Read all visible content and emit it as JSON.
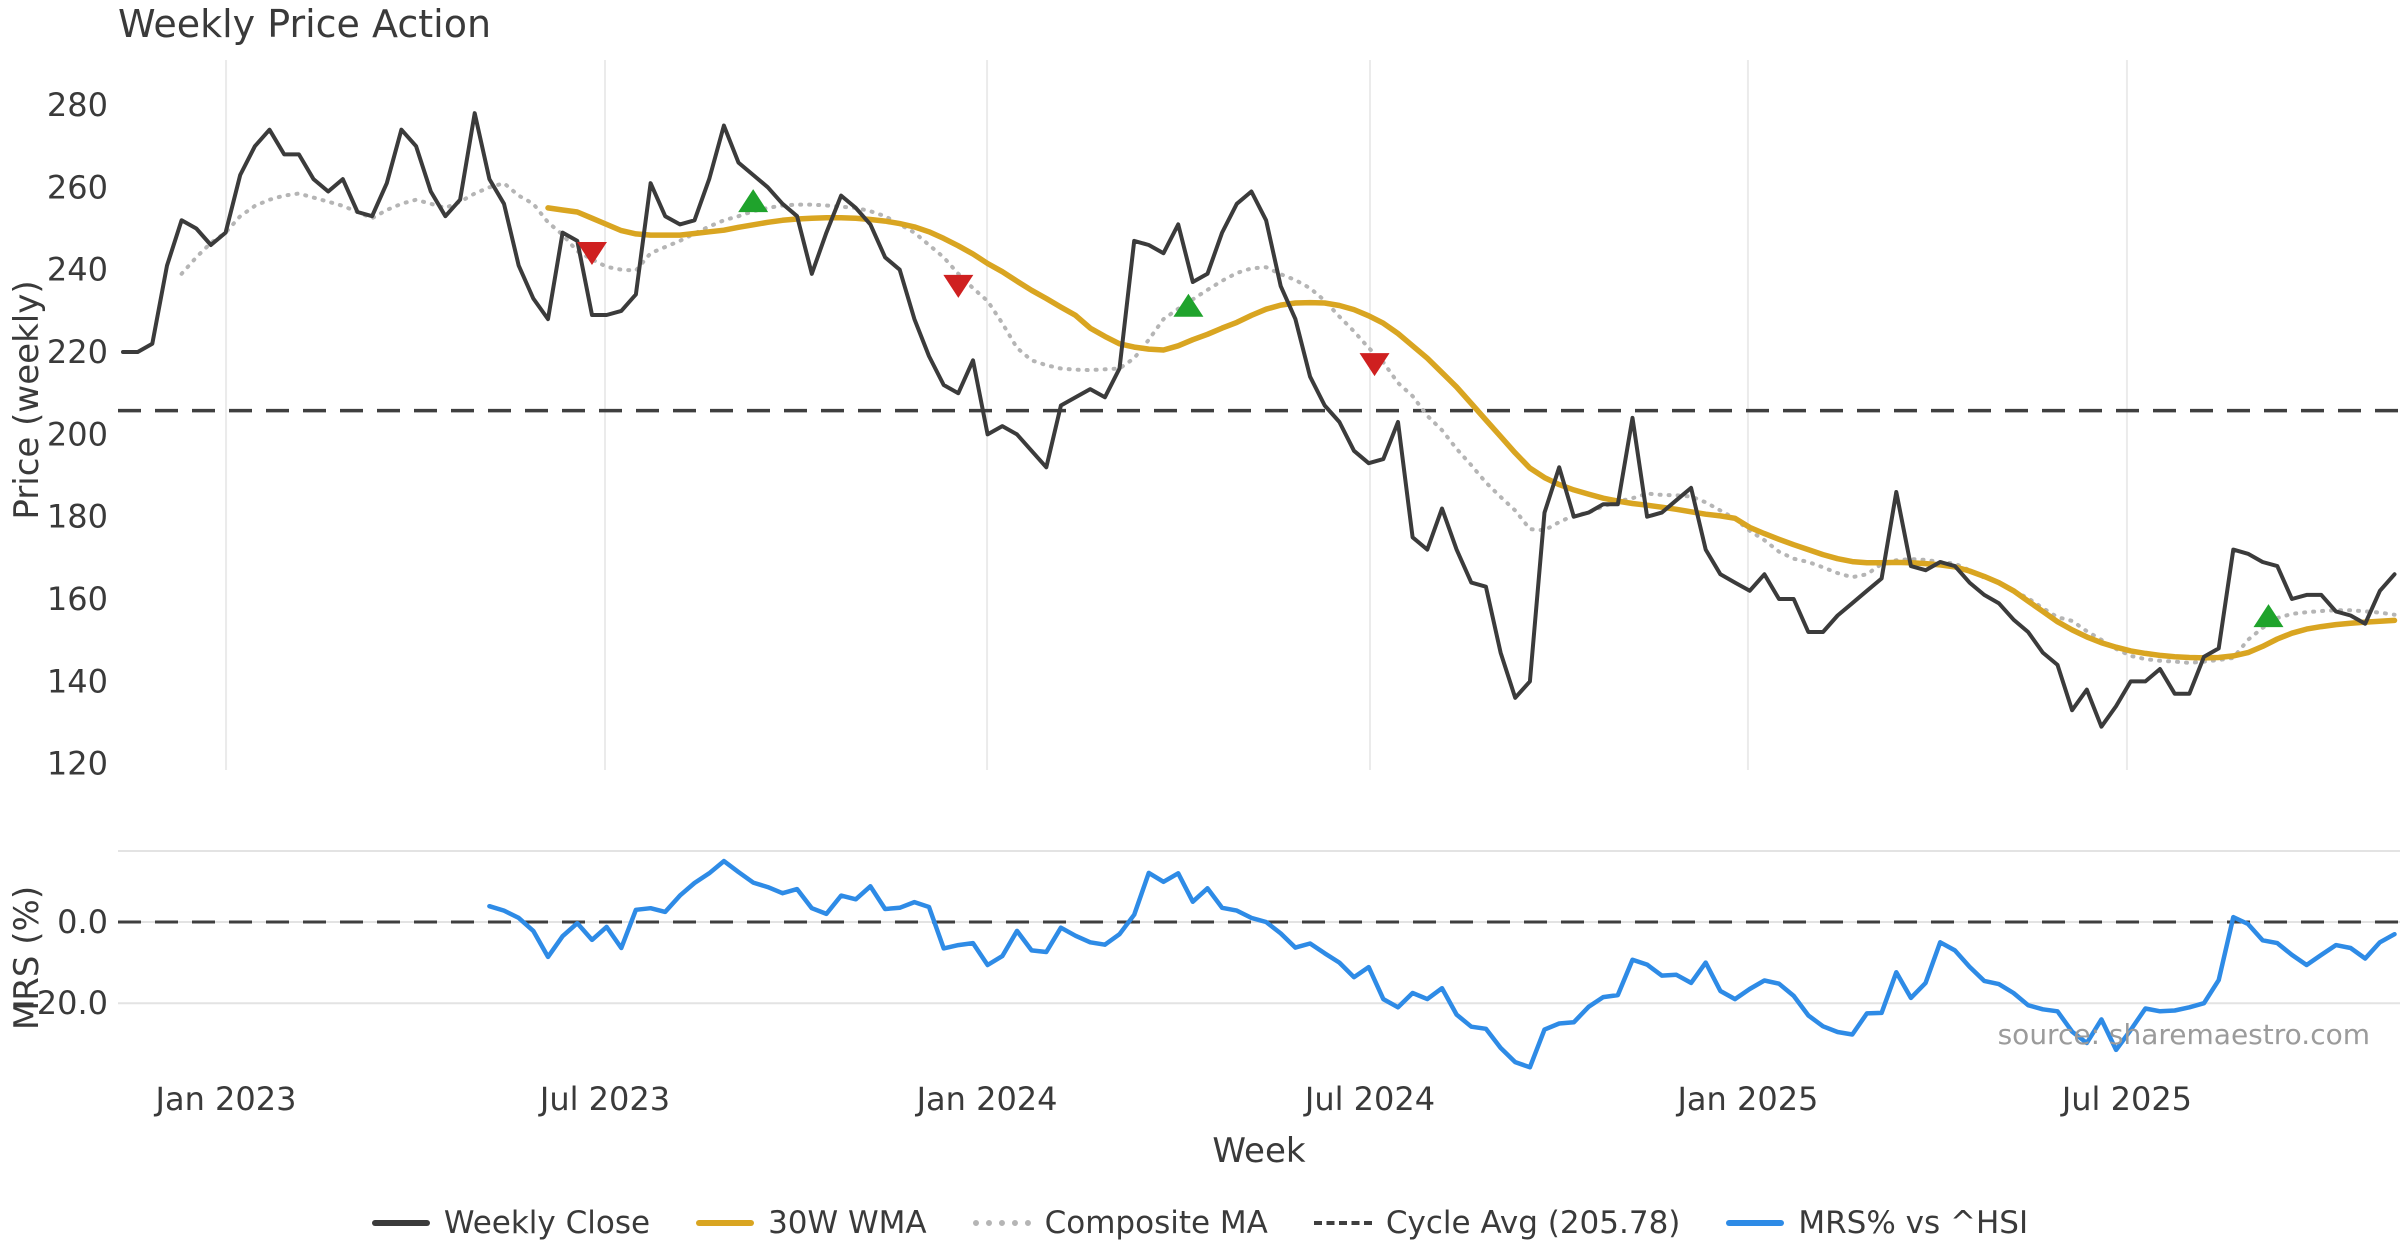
{
  "title": "Weekly Price Action",
  "source": "source: sharemaestro.com",
  "axes": {
    "price_label": "Price (weekly)",
    "mrs_label": "MRS (%)",
    "x_label": "Week",
    "price_ticks": [
      280,
      260,
      240,
      220,
      200,
      180,
      160,
      140,
      120
    ],
    "mrs_ticks": [
      {
        "label": "0.0",
        "value": 0
      },
      {
        "label": "−20.0",
        "value": -20
      }
    ],
    "x_ticks": [
      {
        "label": "Jan 2023",
        "week": 7.03
      },
      {
        "label": "Jul 2023",
        "week": 32.89
      },
      {
        "label": "Jan 2024",
        "week": 58.96
      },
      {
        "label": "Jul 2024",
        "week": 85.09
      },
      {
        "label": "Jan 2025",
        "week": 110.88
      },
      {
        "label": "Jul 2025",
        "week": 136.74
      }
    ]
  },
  "colors": {
    "text": "#3a3a3a",
    "close": "#3b3b3b",
    "wma": "#d9a521",
    "composite": "#b5b5b5",
    "cycle": "#3f3f3f",
    "mrs": "#2e8be6",
    "buy": "#1fa32c",
    "sell": "#cf2020",
    "grid": "#ebebeb",
    "panel_line": "#e3e3e3"
  },
  "legend": [
    {
      "label": "Weekly Close",
      "style": "solid",
      "color": "#3b3b3b"
    },
    {
      "label": "30W WMA",
      "style": "solid",
      "color": "#d9a521"
    },
    {
      "label": "Composite MA",
      "style": "dotted",
      "color": "#b5b5b5"
    },
    {
      "label": "Cycle Avg (205.78)",
      "style": "dashed",
      "color": "#3f3f3f"
    },
    {
      "label": "MRS% vs ^HSI",
      "style": "solid",
      "color": "#2e8be6"
    }
  ],
  "chart_data": {
    "type": "line",
    "x_unit": "week_index",
    "price_axis": {
      "min": 118,
      "max": 292,
      "ticks": [
        280,
        260,
        240,
        220,
        200,
        180,
        160,
        140,
        120
      ]
    },
    "mrs_axis": {
      "ticks": [
        0,
        -20
      ]
    },
    "cycle_avg": 205.78,
    "series": [
      {
        "name": "Weekly Close",
        "panel": "price",
        "start": 0,
        "values": [
          220,
          220,
          222,
          241,
          252,
          250,
          246,
          249,
          263,
          270,
          274,
          268,
          268,
          262,
          259,
          262,
          254,
          253,
          261,
          274,
          270,
          259,
          253,
          257,
          278,
          262,
          256,
          241,
          233,
          228,
          249,
          247,
          229,
          229,
          230,
          234,
          261,
          253,
          251,
          252,
          262,
          275,
          266,
          263,
          260,
          256,
          253,
          239,
          249,
          258,
          255,
          251,
          243,
          240,
          228,
          219,
          212,
          210,
          218,
          200,
          202,
          200,
          196,
          192,
          207,
          209,
          211,
          209,
          216,
          247,
          246,
          244,
          251,
          237,
          239,
          249,
          256,
          259,
          252,
          236,
          228,
          214,
          207,
          203,
          196,
          193,
          194,
          203,
          175,
          172,
          182,
          172,
          164,
          163,
          147,
          136,
          140,
          181,
          192,
          180,
          181,
          183,
          183,
          204,
          180,
          181,
          184,
          187,
          172,
          166,
          164,
          162,
          166,
          160,
          160,
          152,
          152,
          156,
          159,
          162,
          165,
          186,
          168,
          167,
          169,
          168,
          164,
          161,
          159,
          155,
          152,
          147,
          144,
          133,
          138,
          129,
          134,
          140,
          140,
          143,
          137,
          137,
          146,
          148,
          172,
          171,
          169,
          168,
          160,
          161,
          161,
          157,
          156,
          154,
          162,
          166
        ]
      },
      {
        "name": "30W WMA",
        "panel": "price",
        "start": 29,
        "values": [
          255,
          254.5,
          254,
          252.5,
          251,
          249.5,
          248.7,
          248.4,
          248.4,
          248.4,
          248.8,
          249.2,
          249.6,
          250.3,
          250.9,
          251.5,
          252,
          252.3,
          252.5,
          252.6,
          252.6,
          252.5,
          252.2,
          251.8,
          251.2,
          250.4,
          249.2,
          247.6,
          245.8,
          243.8,
          241.5,
          239.5,
          237.2,
          235,
          233,
          230.9,
          228.9,
          225.8,
          223.8,
          222,
          221.2,
          220.7,
          220.5,
          221.5,
          223,
          224.3,
          225.8,
          227.2,
          228.9,
          230.4,
          231.4,
          231.9,
          232,
          231.9,
          231.3,
          230.3,
          228.8,
          227,
          224.5,
          221.5,
          218.5,
          215,
          211.5,
          207.5,
          203.5,
          199.5,
          195.5,
          191.8,
          189.5,
          187.8,
          186.5,
          185.5,
          184.5,
          183.8,
          183.2,
          182.8,
          182.3,
          181.8,
          181.2,
          180.6,
          180.2,
          179.6,
          177.4,
          175.9,
          174.5,
          173.2,
          172,
          170.8,
          169.8,
          169.1,
          168.8,
          168.8,
          168.9,
          168.8,
          168.6,
          168.3,
          167.8,
          166.8,
          165.5,
          164,
          162,
          159.5,
          157,
          154.5,
          152.5,
          150.8,
          149.4,
          148.3,
          147.4,
          146.8,
          146.3,
          146,
          145.8,
          145.7,
          145.8,
          146.2,
          147,
          148.5,
          150.3,
          151.7,
          152.7,
          153.3,
          153.8,
          154.1,
          154.4,
          154.6,
          154.8
        ]
      },
      {
        "name": "Composite MA",
        "panel": "price",
        "start": 4,
        "values": [
          239,
          243,
          246.5,
          249,
          253,
          255.5,
          257,
          258,
          258.5,
          257.5,
          256.5,
          255.5,
          254,
          252.5,
          254.5,
          256,
          257,
          256,
          255,
          256.5,
          258.5,
          260,
          261,
          258,
          256,
          251.5,
          248.5,
          244.5,
          242.5,
          240.7,
          240,
          239.8,
          244,
          245.5,
          247,
          248.8,
          250.5,
          252,
          253,
          254.2,
          255,
          255.6,
          255.8,
          255.8,
          255.6,
          255.3,
          255,
          254.2,
          253,
          251,
          249,
          246,
          243,
          239,
          235.5,
          232.4,
          227,
          221,
          218,
          216.8,
          216,
          215.7,
          215.6,
          215.8,
          216,
          218.5,
          223,
          228,
          230.5,
          232.8,
          235.1,
          237.3,
          239.2,
          240.3,
          240.6,
          238.9,
          237.5,
          235.5,
          232.5,
          228.6,
          225,
          221,
          217.5,
          212.5,
          209.3,
          204.5,
          201,
          196.5,
          192.5,
          188.3,
          184.8,
          181.5,
          177,
          176.7,
          178.7,
          180.3,
          181,
          182.5,
          183.7,
          184.5,
          185.6,
          185.3,
          185.2,
          184.9,
          183.5,
          181.5,
          179.5,
          176.6,
          174.3,
          171.5,
          169.8,
          169,
          167.7,
          166.3,
          165.3,
          166,
          168.5,
          169.4,
          169.7,
          169.5,
          169,
          168.6,
          167,
          165.2,
          164,
          162,
          160.2,
          157.8,
          155.6,
          154.7,
          152.2,
          150.1,
          147.9,
          146.2,
          145.4,
          145,
          144.8,
          144.5,
          144.8,
          145.2,
          145.7,
          150.1,
          153,
          155.4,
          156.4,
          156.8,
          157.1,
          157.3,
          157.3,
          157,
          156.7,
          156.2
        ]
      },
      {
        "name": "MRS% vs ^HSI",
        "panel": "mrs",
        "start": 25,
        "values": [
          3.9,
          2.8,
          1,
          -2.2,
          -8.6,
          -3.5,
          -0.3,
          -4.4,
          -1.2,
          -6.4,
          3,
          3.4,
          2.5,
          6.5,
          9.6,
          12,
          15,
          12.3,
          9.7,
          8.6,
          7.1,
          8.1,
          3.4,
          2,
          6.5,
          5.6,
          8.8,
          3.2,
          3.5,
          4.9,
          3.7,
          -6.5,
          -5.7,
          -5.2,
          -10.6,
          -8.4,
          -2.2,
          -7,
          -7.4,
          -1.4,
          -3.4,
          -5,
          -5.6,
          -3,
          1.8,
          12.1,
          9.9,
          12,
          5,
          8.3,
          3.5,
          2.8,
          1,
          0,
          -2.8,
          -6.3,
          -5.3,
          -7.7,
          -10,
          -13.6,
          -11.1,
          -19,
          -21,
          -17.5,
          -19,
          -16.3,
          -22.8,
          -25.8,
          -26.3,
          -31,
          -34.5,
          -35.8,
          -26.5,
          -25,
          -24.7,
          -20.9,
          -18.5,
          -18,
          -9.3,
          -10.5,
          -13.2,
          -13,
          -15,
          -10,
          -17,
          -19,
          -16.5,
          -14.4,
          -15.2,
          -18.2,
          -23,
          -25.7,
          -27.1,
          -27.7,
          -22.5,
          -22.4,
          -12.4,
          -18.7,
          -15,
          -5,
          -7,
          -11,
          -14.5,
          -15.3,
          -17.5,
          -20.5,
          -21.5,
          -22,
          -27,
          -29.8,
          -24,
          -31.5,
          -26.6,
          -21.3,
          -22,
          -21.8,
          -21,
          -20,
          -14.3,
          1.2,
          -0.5,
          -4.5,
          -5.2,
          -8.1,
          -10.6,
          -8.1,
          -5.7,
          -6.4,
          -9,
          -5,
          -3
        ]
      }
    ],
    "signals": {
      "buy": [
        {
          "week": 43.0,
          "price": 256.4
        },
        {
          "week": 72.7,
          "price": 231.0
        },
        {
          "week": 146.4,
          "price": 155.6
        }
      ],
      "sell": [
        {
          "week": 32.0,
          "price": 244.3
        },
        {
          "week": 57.0,
          "price": 236.3
        },
        {
          "week": 85.4,
          "price": 217.3
        }
      ]
    }
  }
}
